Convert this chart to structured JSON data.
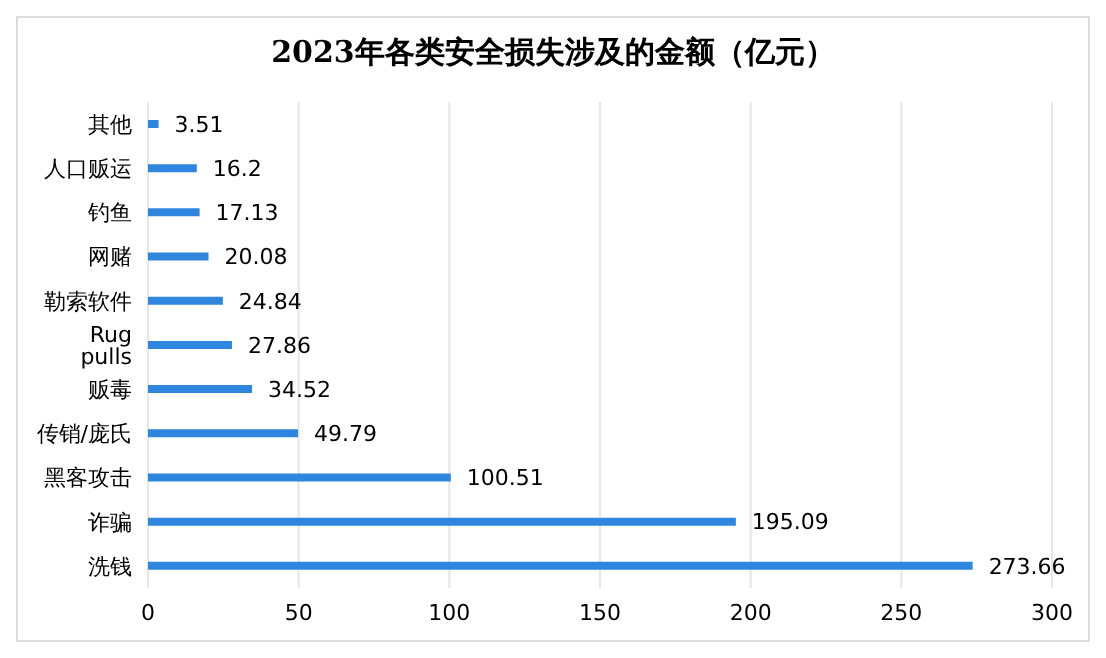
{
  "chart_data": {
    "type": "bar",
    "orientation": "horizontal",
    "title": "2023年各类安全损失涉及的金额（亿元）",
    "categories": [
      "其他",
      "人口贩运",
      "钓鱼",
      "网赌",
      "勒索软件",
      "Rug pulls",
      "贩毒",
      "传销/庞氏",
      "黑客攻击",
      "诈骗",
      "洗钱"
    ],
    "values": [
      3.51,
      16.2,
      17.13,
      20.08,
      24.84,
      27.86,
      34.52,
      49.79,
      100.51,
      195.09,
      273.66
    ],
    "color": "#2e86de",
    "xlim": [
      0,
      300
    ],
    "xticks": [
      0,
      50,
      100,
      150,
      200,
      250,
      300
    ],
    "grid": "x",
    "data_labels": true
  }
}
